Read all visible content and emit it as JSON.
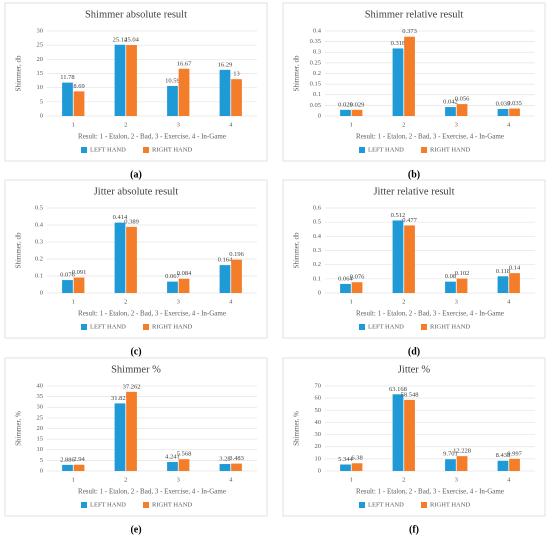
{
  "chart_data": [
    {
      "type": "bar",
      "title": "Shimmer absolute result",
      "y_label": "Shimmer, db",
      "x_label": "Result: 1 - Etalon, 2 - Bad, 3 - Exercise, 4 - In-Game",
      "caption": "(a)",
      "categories": [
        "1",
        "2",
        "3",
        "4"
      ],
      "ylim": [
        0,
        30
      ],
      "yticks": [
        0,
        5,
        10,
        15,
        20,
        25,
        30
      ],
      "grid": true,
      "legend": "bottom",
      "series": [
        {
          "name": "LEFT HAND",
          "color": "#1f9ad6",
          "values": [
            11.78,
            25.14,
            10.59,
            16.29
          ]
        },
        {
          "name": "RIGHT HAND",
          "color": "#f47d2a",
          "values": [
            8.69,
            25.04,
            16.67,
            13
          ]
        }
      ]
    },
    {
      "type": "bar",
      "title": "Shimmer relative result",
      "y_label": "Shimmer, db",
      "x_label": "Result: 1 - Etalon, 2 - Bad, 3 - Exercise, 4 - In-Game",
      "caption": "(b)",
      "categories": [
        "1",
        "2",
        "3",
        "4"
      ],
      "ylim": [
        0,
        0.4
      ],
      "yticks": [
        0,
        0.05,
        0.1,
        0.15,
        0.2,
        0.25,
        0.3,
        0.35,
        0.4
      ],
      "grid": true,
      "legend": "bottom",
      "series": [
        {
          "name": "LEFT HAND",
          "color": "#1f9ad6",
          "values": [
            0.029,
            0.318,
            0.042,
            0.033
          ]
        },
        {
          "name": "RIGHT HAND",
          "color": "#f47d2a",
          "values": [
            0.029,
            0.373,
            0.056,
            0.035
          ]
        }
      ]
    },
    {
      "type": "bar",
      "title": "Jitter absolute result",
      "y_label": "Shimmer, db",
      "x_label": "Result: 1 - Etalon, 2 - Bad, 3 - Exercise, 4 - In-Game",
      "caption": "(c)",
      "categories": [
        "1",
        "2",
        "3",
        "4"
      ],
      "ylim": [
        0,
        0.5
      ],
      "yticks": [
        0,
        0.1,
        0.2,
        0.3,
        0.4,
        0.5
      ],
      "grid": true,
      "legend": "bottom",
      "series": [
        {
          "name": "LEFT HAND",
          "color": "#1f9ad6",
          "values": [
            0.076,
            0.414,
            0.067,
            0.164
          ]
        },
        {
          "name": "RIGHT HAND",
          "color": "#f47d2a",
          "values": [
            0.091,
            0.389,
            0.084,
            0.196
          ]
        }
      ]
    },
    {
      "type": "bar",
      "title": "Jitter relative result",
      "y_label": "Shimmer, db",
      "x_label": "Result: 1 - Etalon, 2 - Bad, 3 - Exercise, 4 - In-Game",
      "caption": "(d)",
      "categories": [
        "1",
        "2",
        "3",
        "4"
      ],
      "ylim": [
        0,
        0.6
      ],
      "yticks": [
        0,
        0.1,
        0.2,
        0.3,
        0.4,
        0.5,
        0.6
      ],
      "grid": true,
      "legend": "bottom",
      "series": [
        {
          "name": "LEFT HAND",
          "color": "#1f9ad6",
          "values": [
            0.064,
            0.512,
            0.08,
            0.118
          ]
        },
        {
          "name": "RIGHT HAND",
          "color": "#f47d2a",
          "values": [
            0.076,
            0.477,
            0.102,
            0.14
          ]
        }
      ]
    },
    {
      "type": "bar",
      "title": "Shimmer %",
      "y_label": "Shimmer, %",
      "x_label": "Result: 1 - Etalon, 2 - Bad, 3 - Exercise, 4 - In-Game",
      "caption": "(e)",
      "categories": [
        "1",
        "2",
        "3",
        "4"
      ],
      "ylim": [
        0,
        40
      ],
      "yticks": [
        0,
        5,
        10,
        15,
        20,
        25,
        30,
        35,
        40
      ],
      "grid": true,
      "legend": "bottom",
      "series": [
        {
          "name": "LEFT HAND",
          "color": "#1f9ad6",
          "values": [
            2.886,
            31.827,
            4.241,
            3.28
          ]
        },
        {
          "name": "RIGHT HAND",
          "color": "#f47d2a",
          "values": [
            2.94,
            37.262,
            5.568,
            3.483
          ]
        }
      ]
    },
    {
      "type": "bar",
      "title": "Jitter %",
      "y_label": "Shimmer, %",
      "x_label": "Result: 1 - Etalon, 2 - Bad, 3 - Exercise, 4 - In-Game",
      "caption": "(f)",
      "categories": [
        "1",
        "2",
        "3",
        "4"
      ],
      "ylim": [
        0,
        70
      ],
      "yticks": [
        0,
        10,
        20,
        30,
        40,
        50,
        60,
        70
      ],
      "grid": true,
      "legend": "bottom",
      "series": [
        {
          "name": "LEFT HAND",
          "color": "#1f9ad6",
          "values": [
            5.344,
            63.168,
            9.701,
            8.438
          ]
        },
        {
          "name": "RIGHT HAND",
          "color": "#f47d2a",
          "values": [
            6.38,
            58.548,
            12.228,
            9.997
          ]
        }
      ]
    }
  ]
}
